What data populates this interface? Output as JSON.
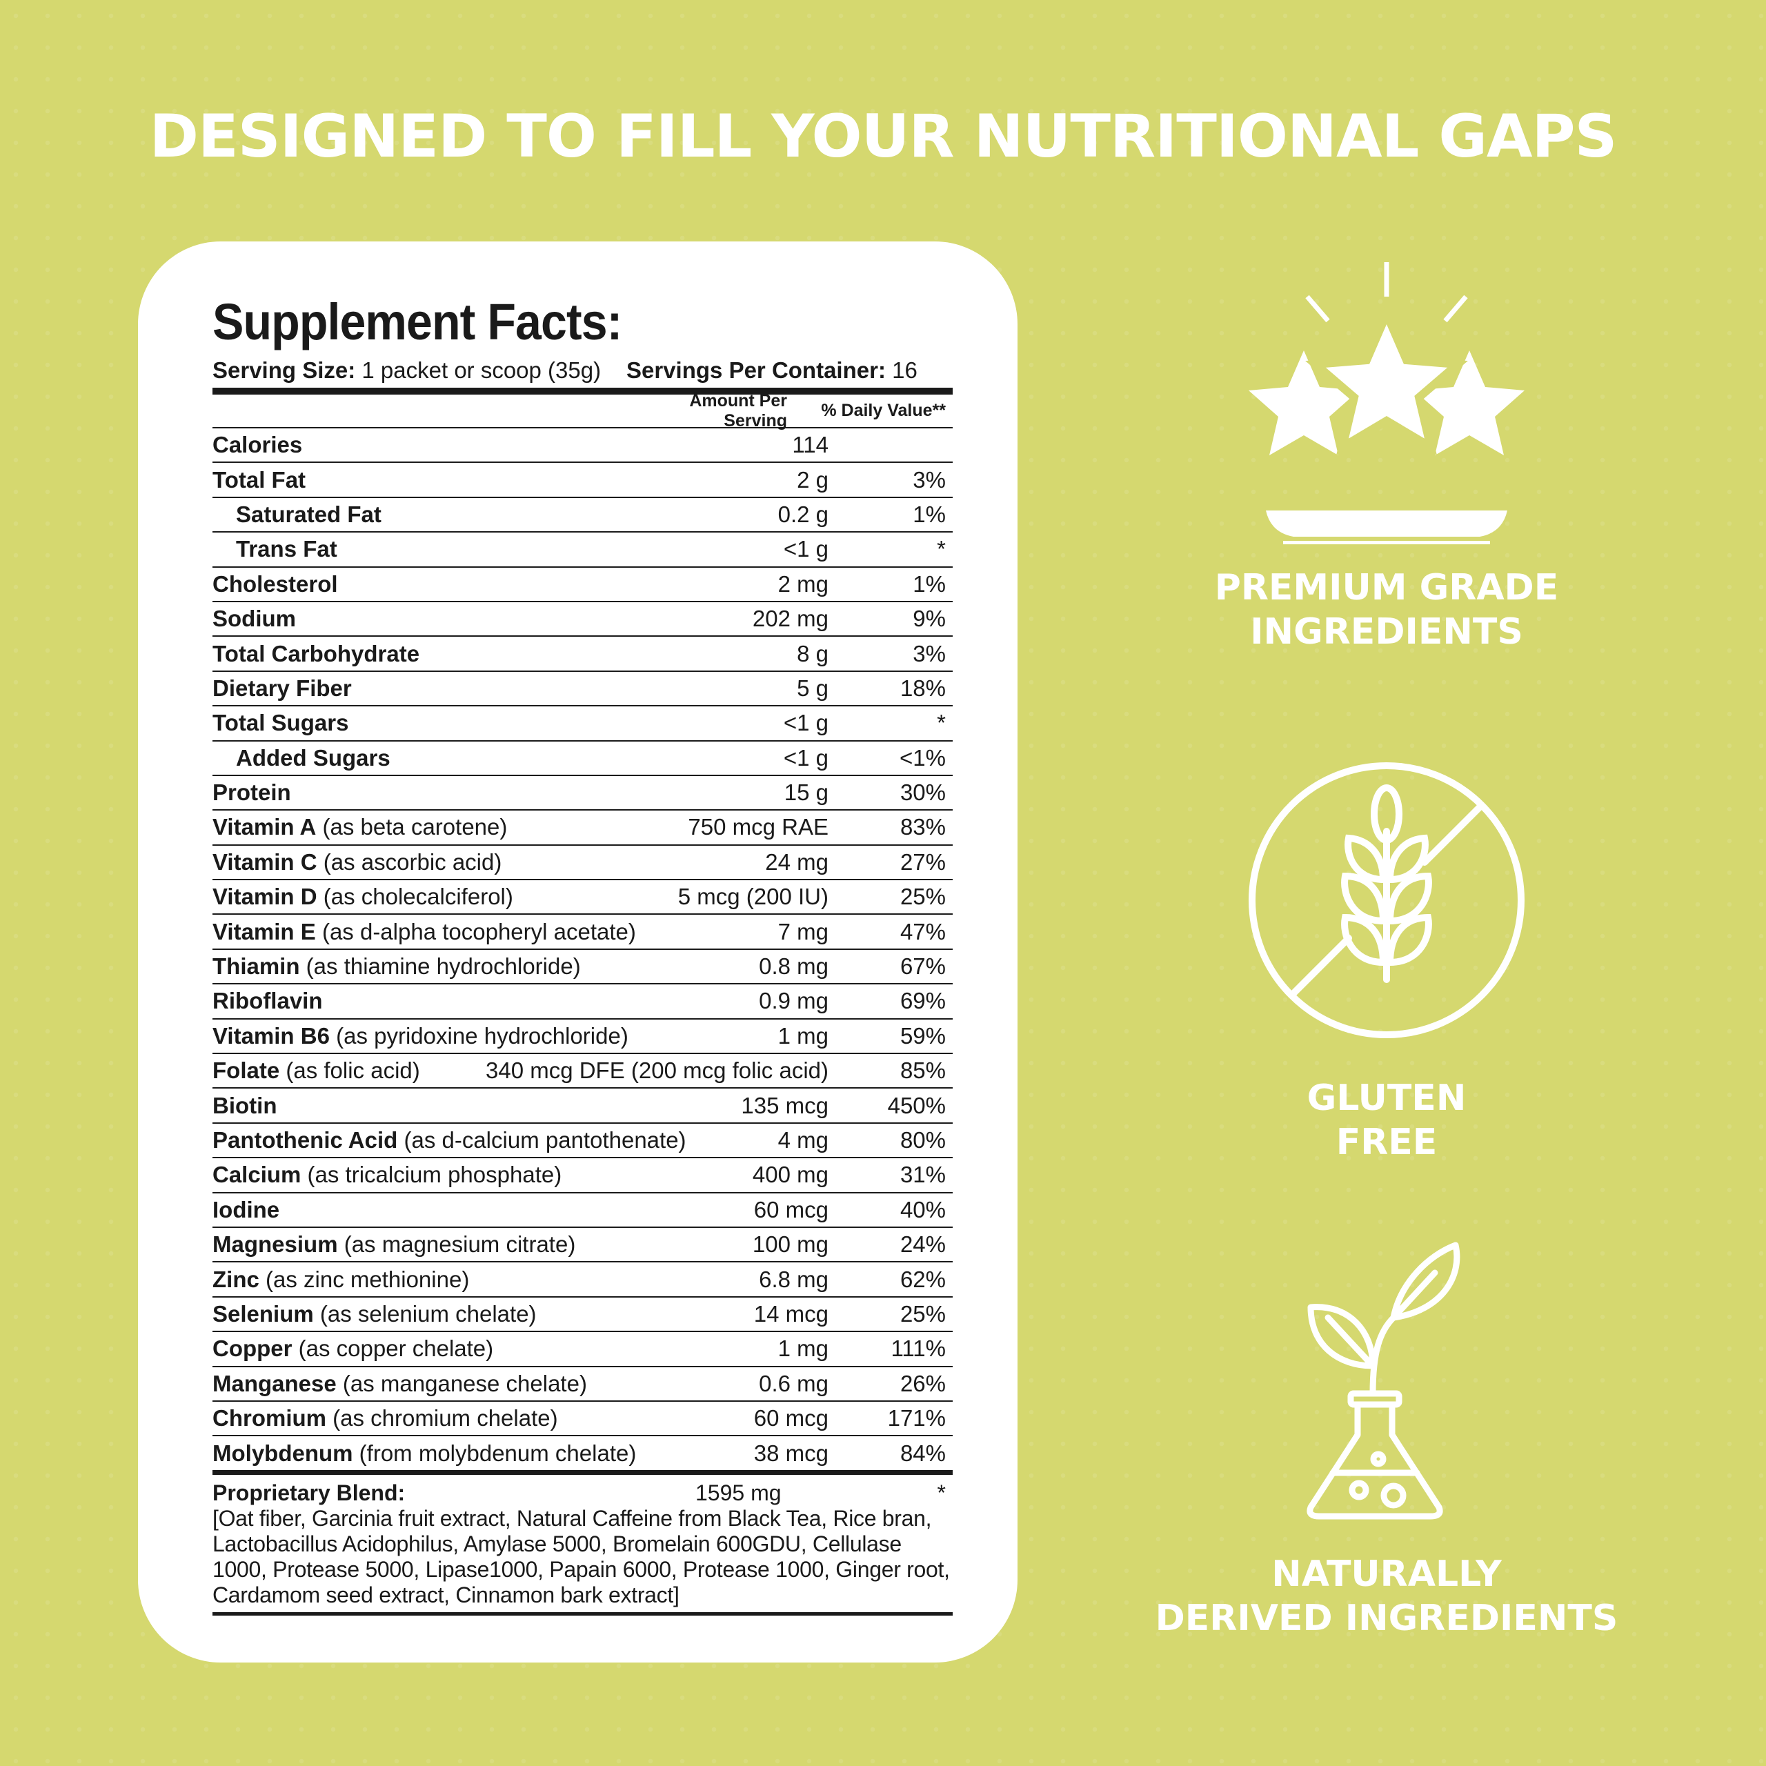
{
  "headline": "DESIGNED TO FILL YOUR NUTRITIONAL GAPS",
  "colors": {
    "background": "#d5d86f",
    "card": "#ffffff",
    "text": "#1a1a1a",
    "accent_white": "#ffffff"
  },
  "facts": {
    "title": "Supplement Facts:",
    "serving_size_label": "Serving Size:",
    "serving_size_value": " 1 packet or scoop (35g)",
    "servings_label": "Servings Per Container:",
    "servings_value": " 16",
    "col_amount": "Amount Per Serving",
    "col_dv": "% Daily Value**",
    "rows": [
      {
        "name": "Calories",
        "detail": "",
        "amount": "114",
        "dv": "",
        "indent": false
      },
      {
        "name": "Total Fat",
        "detail": "",
        "amount": "2 g",
        "dv": "3%",
        "indent": false
      },
      {
        "name": "Saturated Fat",
        "detail": "",
        "amount": "0.2 g",
        "dv": "1%",
        "indent": true
      },
      {
        "name": "Trans Fat",
        "detail": "",
        "amount": "<1 g",
        "dv": "*",
        "indent": true
      },
      {
        "name": "Cholesterol",
        "detail": "",
        "amount": "2 mg",
        "dv": "1%",
        "indent": false
      },
      {
        "name": "Sodium",
        "detail": "",
        "amount": "202 mg",
        "dv": "9%",
        "indent": false
      },
      {
        "name": "Total Carbohydrate",
        "detail": "",
        "amount": "8 g",
        "dv": "3%",
        "indent": false
      },
      {
        "name": "Dietary Fiber",
        "detail": "",
        "amount": "5 g",
        "dv": "18%",
        "indent": false
      },
      {
        "name": "Total Sugars",
        "detail": "",
        "amount": "<1 g",
        "dv": "*",
        "indent": false
      },
      {
        "name": "Added Sugars",
        "detail": "",
        "amount": "<1 g",
        "dv": "<1%",
        "indent": true
      },
      {
        "name": "Protein",
        "detail": "",
        "amount": "15 g",
        "dv": "30%",
        "indent": false
      },
      {
        "name": "Vitamin A",
        "detail": " (as beta carotene)",
        "amount": "750 mcg RAE",
        "dv": "83%",
        "indent": false
      },
      {
        "name": "Vitamin C",
        "detail": " (as ascorbic acid)",
        "amount": "24 mg",
        "dv": "27%",
        "indent": false
      },
      {
        "name": "Vitamin D",
        "detail": " (as cholecalciferol)",
        "amount": "5 mcg (200 IU)",
        "dv": "25%",
        "indent": false
      },
      {
        "name": "Vitamin E",
        "detail": " (as d-alpha tocopheryl acetate)",
        "amount": "7 mg",
        "dv": "47%",
        "indent": false
      },
      {
        "name": "Thiamin",
        "detail": " (as thiamine hydrochloride)",
        "amount": "0.8 mg",
        "dv": "67%",
        "indent": false
      },
      {
        "name": "Riboflavin",
        "detail": "",
        "amount": "0.9 mg",
        "dv": "69%",
        "indent": false
      },
      {
        "name": "Vitamin B6",
        "detail": " (as pyridoxine hydrochloride)",
        "amount": "1 mg",
        "dv": "59%",
        "indent": false
      },
      {
        "name": "Folate",
        "detail": " (as folic acid)",
        "amount": "340 mcg DFE (200 mcg folic acid)",
        "dv": "85%",
        "indent": false
      },
      {
        "name": "Biotin",
        "detail": "",
        "amount": "135 mcg",
        "dv": "450%",
        "indent": false
      },
      {
        "name": "Pantothenic Acid",
        "detail": " (as d-calcium pantothenate)",
        "amount": "4 mg",
        "dv": "80%",
        "indent": false
      },
      {
        "name": "Calcium",
        "detail": " (as tricalcium phosphate)",
        "amount": "400 mg",
        "dv": "31%",
        "indent": false
      },
      {
        "name": "Iodine",
        "detail": "",
        "amount": "60 mcg",
        "dv": "40%",
        "indent": false
      },
      {
        "name": "Magnesium",
        "detail": " (as magnesium citrate)",
        "amount": "100 mg",
        "dv": "24%",
        "indent": false
      },
      {
        "name": "Zinc",
        "detail": " (as zinc methionine)",
        "amount": "6.8 mg",
        "dv": "62%",
        "indent": false
      },
      {
        "name": "Selenium",
        "detail": " (as selenium chelate)",
        "amount": "14 mcg",
        "dv": "25%",
        "indent": false
      },
      {
        "name": "Copper",
        "detail": " (as copper chelate)",
        "amount": "1 mg",
        "dv": "111%",
        "indent": false
      },
      {
        "name": "Manganese",
        "detail": " (as manganese chelate)",
        "amount": "0.6 mg",
        "dv": "26%",
        "indent": false
      },
      {
        "name": "Chromium",
        "detail": " (as chromium chelate)",
        "amount": "60 mcg",
        "dv": "171%",
        "indent": false
      },
      {
        "name": "Molybdenum",
        "detail": " (from molybdenum chelate)",
        "amount": "38 mcg",
        "dv": "84%",
        "indent": false
      }
    ],
    "blend_name": "Proprietary Blend:",
    "blend_amount": "1595 mg",
    "blend_dv": "*",
    "blend_ingredients": "[Oat fiber, Garcinia fruit extract, Natural Caffeine from Black Tea, Rice bran, Lactobacillus Acidophilus, Amylase 5000, Bromelain 600GDU, Cellulase 1000, Protease 5000, Lipase1000, Papain 6000, Protease 1000, Ginger root, Cardamom seed extract, Cinnamon bark extract]"
  },
  "badges": [
    {
      "icon": "stars-icon",
      "line1": "PREMIUM GRADE",
      "line2": "INGREDIENTS"
    },
    {
      "icon": "gluten-free-icon",
      "line1": "GLUTEN",
      "line2": "FREE"
    },
    {
      "icon": "plant-flask-icon",
      "line1": "NATURALLY",
      "line2": "DERIVED INGREDIENTS"
    }
  ]
}
